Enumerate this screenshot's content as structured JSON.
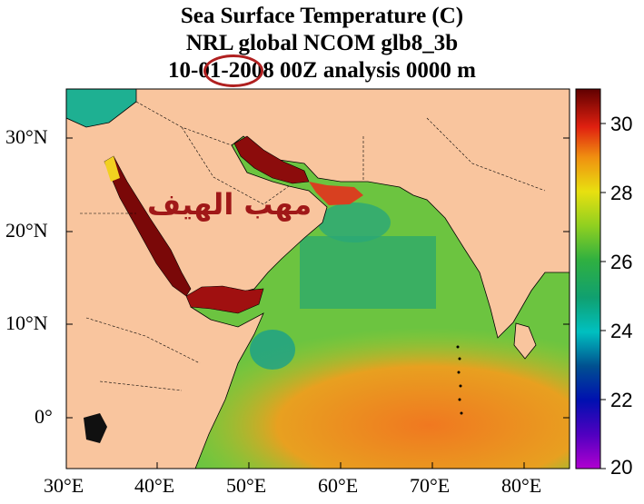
{
  "title": {
    "line1": "Sea Surface Temperature (C)",
    "line2": "NRL global NCOM glb8_3b",
    "line3": "10-01-2008 00Z analysis   0000 m"
  },
  "overlay_text": "مهب الهيف",
  "axes": {
    "y_ticks": [
      "30°N",
      "20°N",
      "10°N",
      "0°"
    ],
    "x_ticks": [
      "30°E",
      "40°E",
      "50°E",
      "60°E",
      "70°E",
      "80°E"
    ],
    "lat_range": [
      -5,
      35
    ],
    "lon_range": [
      30,
      85
    ]
  },
  "colorbar": {
    "range": [
      20,
      31
    ],
    "labels": [
      "30",
      "28",
      "26",
      "24",
      "22",
      "20"
    ]
  },
  "colors": {
    "land": "#f9c59e",
    "warm": "#8b0a0a",
    "mid": "#2aa84a",
    "hot": "#f08020",
    "accent_circle": "#b02020"
  }
}
